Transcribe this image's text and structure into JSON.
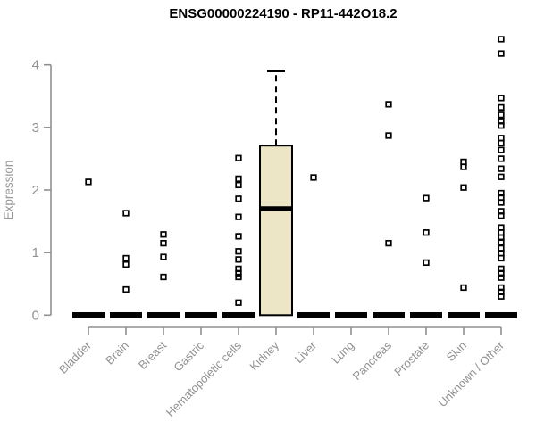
{
  "chart_data": {
    "type": "bar",
    "subtype": "boxplot-with-scatter",
    "title": "ENSG00000224190 - RP11-442O18.2",
    "ylabel": "Expression",
    "xlabel": "",
    "ylim": [
      0,
      4.5
    ],
    "y_ticks": [
      0,
      1,
      2,
      3,
      4
    ],
    "grid": false,
    "legend_position": "none",
    "categories": [
      "Bladder",
      "Brain",
      "Breast",
      "Gastric",
      "Hematopoietic cells",
      "Kidney",
      "Liver",
      "Lung",
      "Pancreas",
      "Prostate",
      "Skin",
      "Unknown / Other"
    ],
    "series": [
      {
        "category": "Bladder",
        "box": {
          "whisker_low": 0,
          "q1": 0,
          "median": 0,
          "q3": 0,
          "whisker_high": 0
        },
        "points": [
          2.13
        ]
      },
      {
        "category": "Brain",
        "box": {
          "whisker_low": 0,
          "q1": 0,
          "median": 0,
          "q3": 0,
          "whisker_high": 0
        },
        "points": [
          1.63,
          0.91,
          0.81,
          0.41
        ]
      },
      {
        "category": "Breast",
        "box": {
          "whisker_low": 0,
          "q1": 0,
          "median": 0,
          "q3": 0,
          "whisker_high": 0
        },
        "points": [
          1.29,
          1.15,
          0.93,
          0.61
        ]
      },
      {
        "category": "Gastric",
        "box": {
          "whisker_low": 0,
          "q1": 0,
          "median": 0,
          "q3": 0,
          "whisker_high": 0
        },
        "points": []
      },
      {
        "category": "Hematopoietic cells",
        "box": {
          "whisker_low": 0,
          "q1": 0,
          "median": 0,
          "q3": 0,
          "whisker_high": 0
        },
        "points": [
          2.51,
          2.18,
          2.08,
          1.86,
          1.57,
          1.26,
          1.02,
          0.89,
          0.74,
          0.67,
          0.61,
          0.2
        ]
      },
      {
        "category": "Kidney",
        "box": {
          "whisker_low": 0,
          "q1": 0,
          "median": 1.7,
          "q3": 2.71,
          "whisker_high": 3.9
        },
        "points": []
      },
      {
        "category": "Liver",
        "box": {
          "whisker_low": 0,
          "q1": 0,
          "median": 0,
          "q3": 0,
          "whisker_high": 0
        },
        "points": [
          2.2
        ]
      },
      {
        "category": "Lung",
        "box": {
          "whisker_low": 0,
          "q1": 0,
          "median": 0,
          "q3": 0,
          "whisker_high": 0
        },
        "points": []
      },
      {
        "category": "Pancreas",
        "box": {
          "whisker_low": 0,
          "q1": 0,
          "median": 0,
          "q3": 0,
          "whisker_high": 0
        },
        "points": [
          3.37,
          2.87,
          1.15
        ]
      },
      {
        "category": "Prostate",
        "box": {
          "whisker_low": 0,
          "q1": 0,
          "median": 0,
          "q3": 0,
          "whisker_high": 0
        },
        "points": [
          1.87,
          1.32,
          0.84
        ]
      },
      {
        "category": "Skin",
        "box": {
          "whisker_low": 0,
          "q1": 0,
          "median": 0,
          "q3": 0,
          "whisker_high": 0
        },
        "points": [
          2.45,
          2.37,
          2.04,
          0.44
        ]
      },
      {
        "category": "Unknown / Other",
        "box": {
          "whisker_low": 0,
          "q1": 0,
          "median": 0,
          "q3": 0,
          "whisker_high": 0
        },
        "points": [
          4.41,
          4.18,
          3.47,
          3.32,
          3.2,
          3.1,
          3.03,
          2.83,
          2.75,
          2.64,
          2.5,
          2.34,
          2.21,
          1.95,
          1.88,
          1.8,
          1.66,
          1.59,
          1.4,
          1.32,
          1.24,
          1.17,
          1.07,
          0.99,
          0.91,
          0.74,
          0.67,
          0.6,
          0.44,
          0.37,
          0.3
        ]
      }
    ],
    "colors": {
      "box_fill": "#ECE5C6",
      "box_stroke": "#000000",
      "median": "#000000",
      "marker": "#000000",
      "axis": "#909090",
      "tick_label": "#909090",
      "axis_label": "#989898",
      "title": "#000000",
      "background": "#ffffff"
    }
  }
}
